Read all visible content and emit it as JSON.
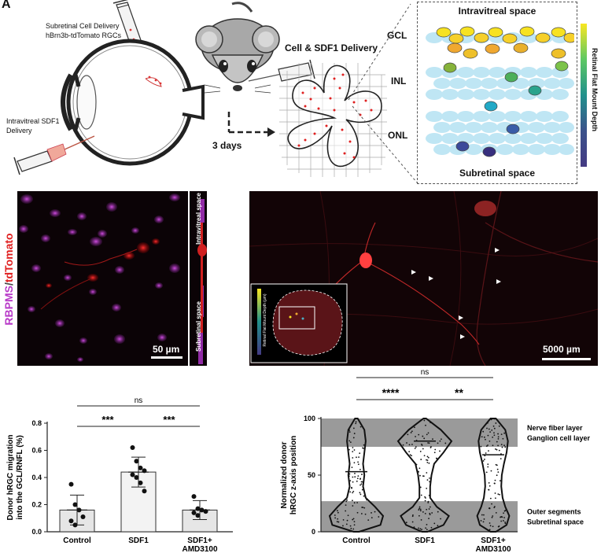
{
  "panel_a": {
    "letter": "A",
    "subretinal_delivery": "Subretinal Cell Delivery",
    "subretinal_cells": "hBrn3b-tdTomato RGCs",
    "intravitreal_delivery_l1": "Intravitreal SDF1",
    "intravitreal_delivery_l2": "Delivery",
    "cell_sdf1": "Cell & SDF1 Delivery",
    "days": "3 days",
    "intravitreal_space": "Intravitreal space",
    "subretinal_space": "Subretinal space",
    "gcl": "GCL",
    "inl": "INL",
    "onl": "ONL",
    "depth_label": "Retinal Flat Mount Depth",
    "colorbar_colors": [
      "#f9e721",
      "#5dc863",
      "#21918c",
      "#3b528b",
      "#443a83"
    ]
  },
  "panel_b": {
    "stain_part1": "RBPMS",
    "stain_sep": "/",
    "stain_part2": "tdTomato",
    "stain_color1": "#c040d0",
    "stain_color2": "#e02020",
    "orth_top": "Intravitreal space",
    "orth_bottom": "Subretinal space",
    "scalebar": "50 µm"
  },
  "panel_c": {
    "scalebar": "5000 µm",
    "inset_label": "Retinal Flat Mount Depth (µm)"
  },
  "chart_data": [
    {
      "type": "bar",
      "categories": [
        "Control",
        "SDF1",
        "SDF1+ AMD3100"
      ],
      "category_lines": [
        [
          "Control"
        ],
        [
          "SDF1"
        ],
        [
          "SDF1+",
          "AMD3100"
        ]
      ],
      "values": [
        0.16,
        0.44,
        0.16
      ],
      "errors": [
        0.11,
        0.11,
        0.07
      ],
      "points": [
        [
          0.35,
          0.2,
          0.16,
          0.11,
          0.08,
          0.05
        ],
        [
          0.62,
          0.52,
          0.47,
          0.45,
          0.42,
          0.4,
          0.36,
          0.3
        ],
        [
          0.26,
          0.17,
          0.16,
          0.15,
          0.14,
          0.12
        ]
      ],
      "ylabel_l1": "Donor hRGC migration",
      "ylabel_l2": "into the GCL/RNFL (%)",
      "ylim": [
        0,
        0.8
      ],
      "yticks": [
        "0.0",
        "0.2",
        "0.4",
        "0.6",
        "0.8"
      ],
      "bar_colors": [
        "#e6e6e6",
        "#f3f3f3",
        "#e6e6e6"
      ],
      "sig": [
        {
          "from": 0,
          "to": 1,
          "label": "***"
        },
        {
          "from": 1,
          "to": 2,
          "label": "***"
        },
        {
          "from": 0,
          "to": 2,
          "label": "ns"
        }
      ]
    },
    {
      "type": "violin",
      "categories": [
        "Control",
        "SDF1",
        "SDF1+ AMD3100"
      ],
      "category_lines": [
        [
          "Control"
        ],
        [
          "SDF1"
        ],
        [
          "SDF1+",
          "AMD3100"
        ]
      ],
      "medians": [
        53,
        80,
        68
      ],
      "ylabel_l1": "Normalized donor",
      "ylabel_l2": "hRGC z-axis position",
      "ylim": [
        0,
        100
      ],
      "yticks": [
        "0",
        "50",
        "100"
      ],
      "bands": [
        {
          "from": 75,
          "to": 100,
          "label_l1": "Nerve fiber layer",
          "label_l2": "Ganglion cell layer"
        },
        {
          "from": 0,
          "to": 27,
          "label_l1": "Outer segments",
          "label_l2": "Subretinal space"
        }
      ],
      "band_color": "#9a9a9a",
      "sig": [
        {
          "from": 0,
          "to": 1,
          "label": "****"
        },
        {
          "from": 1,
          "to": 2,
          "label": "**"
        },
        {
          "from": 0,
          "to": 2,
          "label": "ns"
        }
      ]
    }
  ]
}
